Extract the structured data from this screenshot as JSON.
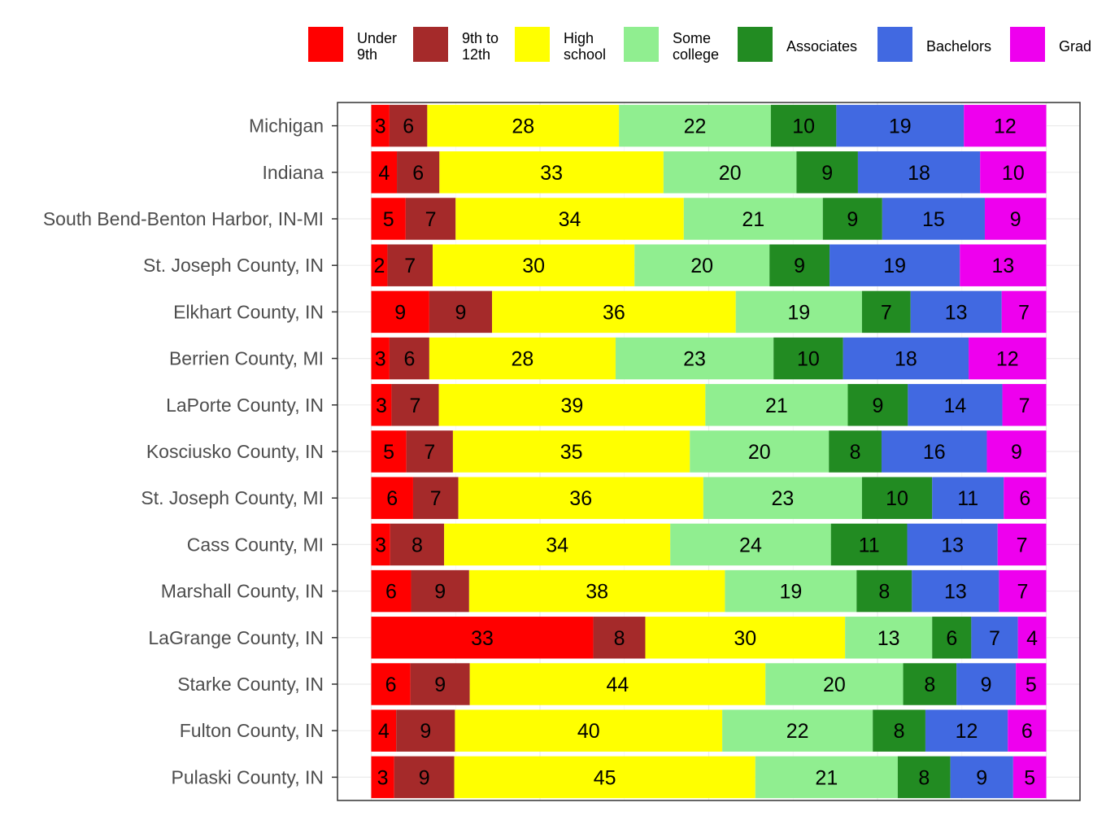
{
  "chart_data": {
    "type": "bar",
    "orientation": "horizontal",
    "stacked": true,
    "categories": [
      "Michigan",
      "Indiana",
      "South Bend-Benton Harbor, IN-MI",
      "St. Joseph County, IN",
      "Elkhart County, IN",
      "Berrien County, MI",
      "LaPorte County, IN",
      "Kosciusko County, IN",
      "St. Joseph County, MI",
      "Cass County, MI",
      "Marshall County, IN",
      "LaGrange County, IN",
      "Starke County, IN",
      "Fulton County, IN",
      "Pulaski County, IN"
    ],
    "series": [
      {
        "name": "Under 9th",
        "legend_lines": [
          "Under",
          "9th"
        ],
        "color": "#ff0000",
        "values": [
          2.7,
          3.8,
          5.1,
          2.4,
          8.6,
          2.7,
          3.0,
          5.2,
          6.2,
          2.8,
          5.9,
          32.9,
          5.8,
          3.7,
          3.4
        ]
      },
      {
        "name": "9th to 12th",
        "legend_lines": [
          "9th to",
          "12th"
        ],
        "color": "#a52a2a",
        "values": [
          5.6,
          6.3,
          7.4,
          6.7,
          9.3,
          5.9,
          7.0,
          6.9,
          6.7,
          8.0,
          8.6,
          7.7,
          8.8,
          8.7,
          8.9
        ]
      },
      {
        "name": "High school",
        "legend_lines": [
          "High",
          "school"
        ],
        "color": "#ffff00",
        "values": [
          28.4,
          33.2,
          33.8,
          29.9,
          36.1,
          27.6,
          39.5,
          35.1,
          36.3,
          33.5,
          37.9,
          29.6,
          43.8,
          39.6,
          44.6
        ]
      },
      {
        "name": "Some college",
        "legend_lines": [
          "Some",
          "college"
        ],
        "color": "#90ee90",
        "values": [
          22.5,
          19.7,
          20.6,
          20.0,
          18.7,
          23.4,
          21.1,
          20.6,
          23.5,
          23.8,
          19.5,
          12.9,
          20.4,
          22.3,
          21.1
        ]
      },
      {
        "name": "Associates",
        "legend_lines": [
          "Associates"
        ],
        "color": "#228b22",
        "values": [
          9.7,
          9.1,
          8.8,
          8.9,
          7.2,
          10.3,
          8.9,
          7.8,
          10.4,
          11.3,
          8.2,
          5.8,
          7.9,
          7.8,
          7.8
        ]
      },
      {
        "name": "Bachelors",
        "legend_lines": [
          "Bachelors"
        ],
        "color": "#4169e1",
        "values": [
          18.9,
          18.1,
          15.2,
          19.3,
          13.5,
          18.6,
          14.0,
          15.6,
          10.6,
          13.4,
          12.9,
          6.9,
          8.8,
          12.2,
          9.3
        ]
      },
      {
        "name": "Graduate",
        "legend_lines": [
          "Grad"
        ],
        "color": "#ee00ee",
        "values": [
          12.2,
          9.8,
          9.1,
          12.8,
          6.6,
          11.5,
          6.5,
          8.8,
          6.3,
          7.2,
          7.0,
          4.2,
          4.5,
          5.7,
          4.9
        ]
      }
    ],
    "labels": [
      [
        3,
        6,
        28,
        22,
        10,
        19,
        12
      ],
      [
        4,
        6,
        33,
        20,
        9,
        18,
        10
      ],
      [
        5,
        7,
        34,
        21,
        9,
        15,
        9
      ],
      [
        2,
        7,
        30,
        20,
        9,
        19,
        13
      ],
      [
        9,
        9,
        36,
        19,
        7,
        13,
        7
      ],
      [
        3,
        6,
        28,
        23,
        10,
        18,
        12
      ],
      [
        3,
        7,
        39,
        21,
        9,
        14,
        7
      ],
      [
        5,
        7,
        35,
        20,
        8,
        16,
        9
      ],
      [
        6,
        7,
        36,
        23,
        10,
        11,
        6
      ],
      [
        3,
        8,
        34,
        24,
        11,
        13,
        7
      ],
      [
        6,
        9,
        38,
        19,
        8,
        13,
        7
      ],
      [
        33,
        8,
        30,
        13,
        6,
        7,
        4
      ],
      [
        6,
        9,
        44,
        20,
        8,
        9,
        5
      ],
      [
        4,
        9,
        40,
        22,
        8,
        12,
        6
      ],
      [
        3,
        9,
        45,
        21,
        8,
        9,
        5
      ]
    ],
    "xlim": [
      -5,
      105
    ],
    "grid": true,
    "legend_position": "top"
  }
}
